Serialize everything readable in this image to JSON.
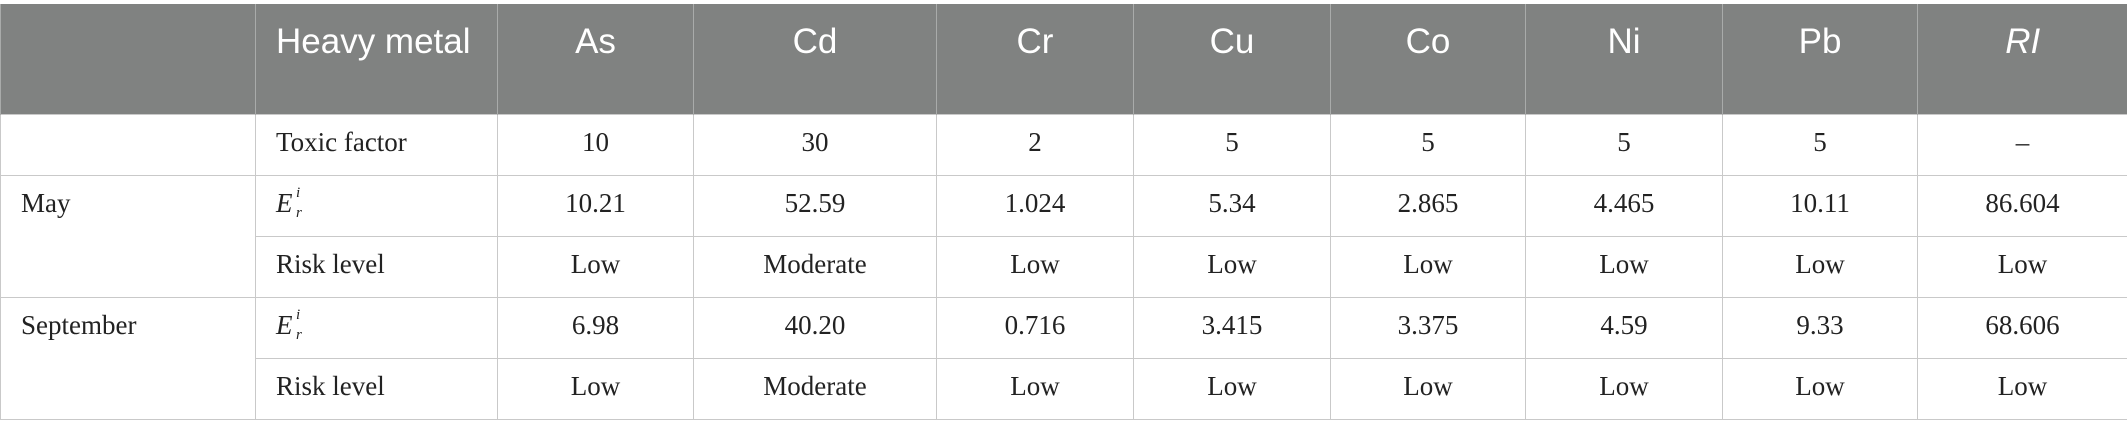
{
  "table": {
    "header": {
      "first": "Heavy metal",
      "metals": [
        "As",
        "Cd",
        "Cr",
        "Cu",
        "Co",
        "Ni",
        "Pb"
      ],
      "last": "RI"
    },
    "toxic": {
      "label": "Toxic factor",
      "values": [
        "10",
        "30",
        "2",
        "5",
        "5",
        "5",
        "5",
        "–"
      ]
    },
    "periods": [
      {
        "name": "May",
        "rows": [
          {
            "label": {
              "base": "E",
              "sup": "i",
              "sub": "r"
            },
            "values": [
              "10.21",
              "52.59",
              "1.024",
              "5.34",
              "2.865",
              "4.465",
              "10.11",
              "86.604"
            ]
          },
          {
            "label": "Risk level",
            "values": [
              "Low",
              "Moderate",
              "Low",
              "Low",
              "Low",
              "Low",
              "Low",
              "Low"
            ]
          }
        ]
      },
      {
        "name": "September",
        "rows": [
          {
            "label": {
              "base": "E",
              "sup": "i",
              "sub": "r"
            },
            "values": [
              "6.98",
              "40.20",
              "0.716",
              "3.415",
              "3.375",
              "4.59",
              "9.33",
              "68.606"
            ]
          },
          {
            "label": "Risk level",
            "values": [
              "Low",
              "Moderate",
              "Low",
              "Low",
              "Low",
              "Low",
              "Low",
              "Low"
            ]
          }
        ]
      }
    ]
  }
}
